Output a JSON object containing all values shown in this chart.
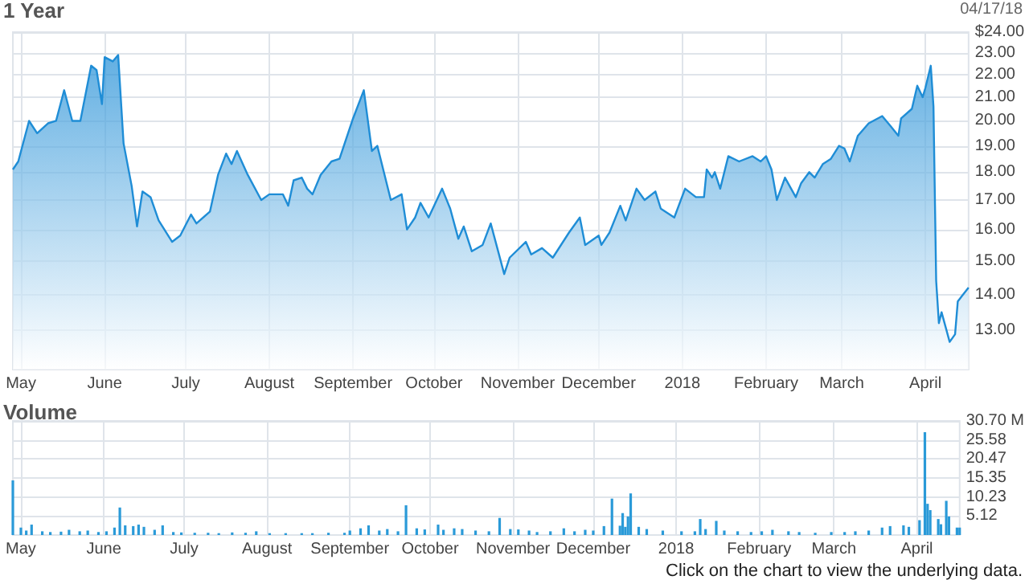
{
  "chart_data": [
    {
      "type": "area",
      "title": "1 Year",
      "annotations": [
        "04/17/18"
      ],
      "color": "#1f8dd6",
      "log": true,
      "grid": true,
      "xlim": [
        "2017-04-28",
        "2018-04-17"
      ],
      "xticks": [
        {
          "value": "2017-05-01",
          "label": "May"
        },
        {
          "value": "2017-06-01",
          "label": "June"
        },
        {
          "value": "2017-07-01",
          "label": "July"
        },
        {
          "value": "2017-08-01",
          "label": "August"
        },
        {
          "value": "2017-09-01",
          "label": "September"
        },
        {
          "value": "2017-10-01",
          "label": "October"
        },
        {
          "value": "2017-11-01",
          "label": "November"
        },
        {
          "value": "2017-12-01",
          "label": "December"
        },
        {
          "value": "2018-01-01",
          "label": "2018"
        },
        {
          "value": "2018-02-01",
          "label": "February"
        },
        {
          "value": "2018-03-01",
          "label": "March"
        },
        {
          "value": "2018-04-01",
          "label": "April"
        }
      ],
      "ylim": [
        12,
        24
      ],
      "yticks": [
        {
          "value": 13,
          "label": "13.00"
        },
        {
          "value": 14,
          "label": "14.00"
        },
        {
          "value": 15,
          "label": "15.00"
        },
        {
          "value": 16,
          "label": "16.00"
        },
        {
          "value": 17,
          "label": "17.00"
        },
        {
          "value": 18,
          "label": "18.00"
        },
        {
          "value": 19,
          "label": "19.00"
        },
        {
          "value": 20,
          "label": "20.00"
        },
        {
          "value": 21,
          "label": "21.00"
        },
        {
          "value": 22,
          "label": "22.00"
        },
        {
          "value": 23,
          "label": "23.00"
        },
        {
          "value": 24,
          "label": "$24.00"
        }
      ],
      "x": [
        "2017-04-28",
        "2017-04-30",
        "2017-05-04",
        "2017-05-07",
        "2017-05-11",
        "2017-05-14",
        "2017-05-17",
        "2017-05-20",
        "2017-05-23",
        "2017-05-27",
        "2017-05-29",
        "2017-05-31",
        "2017-06-01",
        "2017-06-04",
        "2017-06-06",
        "2017-06-08",
        "2017-06-11",
        "2017-06-13",
        "2017-06-15",
        "2017-06-18",
        "2017-06-21",
        "2017-06-26",
        "2017-06-29",
        "2017-07-03",
        "2017-07-05",
        "2017-07-10",
        "2017-07-13",
        "2017-07-16",
        "2017-07-18",
        "2017-07-20",
        "2017-07-24",
        "2017-07-29",
        "2017-08-01",
        "2017-08-06",
        "2017-08-08",
        "2017-08-10",
        "2017-08-13",
        "2017-08-15",
        "2017-08-17",
        "2017-08-20",
        "2017-08-24",
        "2017-08-27",
        "2017-09-01",
        "2017-09-05",
        "2017-09-08",
        "2017-09-10",
        "2017-09-15",
        "2017-09-19",
        "2017-09-21",
        "2017-09-24",
        "2017-09-26",
        "2017-09-29",
        "2017-10-04",
        "2017-10-07",
        "2017-10-10",
        "2017-10-12",
        "2017-10-15",
        "2017-10-19",
        "2017-10-22",
        "2017-10-27",
        "2017-10-29",
        "2017-11-04",
        "2017-11-06",
        "2017-11-10",
        "2017-11-14",
        "2017-11-20",
        "2017-11-24",
        "2017-11-26",
        "2017-12-01",
        "2017-12-02",
        "2017-12-05",
        "2017-12-09",
        "2017-12-11",
        "2017-12-15",
        "2017-12-18",
        "2017-12-22",
        "2017-12-24",
        "2017-12-29",
        "2018-01-02",
        "2018-01-06",
        "2018-01-09",
        "2018-01-10",
        "2018-01-12",
        "2018-01-13",
        "2018-01-15",
        "2018-01-18",
        "2018-01-22",
        "2018-01-27",
        "2018-01-30",
        "2018-02-01",
        "2018-02-03",
        "2018-02-05",
        "2018-02-08",
        "2018-02-12",
        "2018-02-14",
        "2018-02-17",
        "2018-02-19",
        "2018-02-22",
        "2018-02-25",
        "2018-02-28",
        "2018-03-02",
        "2018-03-04",
        "2018-03-07",
        "2018-03-11",
        "2018-03-16",
        "2018-03-19",
        "2018-03-22",
        "2018-03-23",
        "2018-03-27",
        "2018-03-29",
        "2018-03-31",
        "2018-04-01",
        "2018-04-03",
        "2018-04-04",
        "2018-04-05",
        "2018-04-06",
        "2018-04-07",
        "2018-04-10",
        "2018-04-12",
        "2018-04-13",
        "2018-04-15",
        "2018-04-17"
      ],
      "values": [
        18.1,
        18.4,
        20.0,
        19.5,
        19.9,
        20.0,
        21.3,
        20.0,
        20.0,
        22.4,
        22.2,
        20.7,
        22.8,
        22.6,
        22.9,
        19.1,
        17.5,
        16.1,
        17.3,
        17.1,
        16.3,
        15.6,
        15.8,
        16.5,
        16.2,
        16.6,
        17.9,
        18.7,
        18.3,
        18.8,
        17.9,
        17.0,
        17.2,
        17.2,
        16.8,
        17.7,
        17.8,
        17.4,
        17.2,
        17.9,
        18.4,
        18.5,
        20.1,
        21.3,
        18.8,
        19.0,
        17.0,
        17.2,
        16.0,
        16.4,
        16.9,
        16.4,
        17.4,
        16.7,
        15.7,
        16.1,
        15.3,
        15.5,
        16.2,
        14.6,
        15.1,
        15.6,
        15.2,
        15.4,
        15.1,
        15.9,
        16.4,
        15.5,
        15.8,
        15.5,
        15.9,
        16.8,
        16.3,
        17.4,
        17.0,
        17.3,
        16.7,
        16.4,
        17.4,
        17.1,
        17.1,
        18.1,
        17.8,
        18.0,
        17.4,
        18.6,
        18.4,
        18.6,
        18.4,
        18.6,
        18.1,
        17.0,
        17.8,
        17.1,
        17.6,
        18.0,
        17.8,
        18.3,
        18.5,
        19.0,
        18.9,
        18.4,
        19.4,
        19.9,
        20.2,
        19.8,
        19.4,
        20.1,
        20.5,
        21.5,
        21.0,
        21.4,
        22.4,
        20.6,
        14.4,
        13.2,
        13.5,
        12.7,
        12.9,
        13.8,
        14.0,
        14.2
      ]
    },
    {
      "type": "bar",
      "title": "Volume",
      "annotations": [
        "Click on the chart to view the underlying data."
      ],
      "color": "#2a9ad8",
      "grid": true,
      "xlim": [
        "2017-04-28",
        "2018-04-17"
      ],
      "xticks": [
        {
          "value": "2017-05-01",
          "label": "May"
        },
        {
          "value": "2017-06-01",
          "label": "June"
        },
        {
          "value": "2017-07-01",
          "label": "July"
        },
        {
          "value": "2017-08-01",
          "label": "August"
        },
        {
          "value": "2017-09-01",
          "label": "September"
        },
        {
          "value": "2017-10-01",
          "label": "October"
        },
        {
          "value": "2017-11-01",
          "label": "November"
        },
        {
          "value": "2017-12-01",
          "label": "December"
        },
        {
          "value": "2018-01-01",
          "label": "2018"
        },
        {
          "value": "2018-02-01",
          "label": "February"
        },
        {
          "value": "2018-03-01",
          "label": "March"
        },
        {
          "value": "2018-04-01",
          "label": "April"
        }
      ],
      "ylim": [
        0,
        30.7
      ],
      "yticks": [
        5.12,
        10.23,
        15.35,
        20.47,
        25.58,
        {
          "value": 30.7,
          "label": "30.70 M"
        }
      ],
      "x": [
        "2017-04-28",
        "2017-05-01",
        "2017-05-03",
        "2017-05-05",
        "2017-05-09",
        "2017-05-12",
        "2017-05-16",
        "2017-05-19",
        "2017-05-23",
        "2017-05-26",
        "2017-05-30",
        "2017-06-02",
        "2017-06-05",
        "2017-06-07",
        "2017-06-09",
        "2017-06-12",
        "2017-06-14",
        "2017-06-16",
        "2017-06-20",
        "2017-06-23",
        "2017-06-27",
        "2017-06-30",
        "2017-07-05",
        "2017-07-10",
        "2017-07-14",
        "2017-07-19",
        "2017-07-24",
        "2017-07-28",
        "2017-08-02",
        "2017-08-08",
        "2017-08-14",
        "2017-08-18",
        "2017-08-24",
        "2017-08-30",
        "2017-09-01",
        "2017-09-05",
        "2017-09-08",
        "2017-09-12",
        "2017-09-15",
        "2017-09-19",
        "2017-09-22",
        "2017-09-26",
        "2017-09-29",
        "2017-10-04",
        "2017-10-06",
        "2017-10-10",
        "2017-10-13",
        "2017-10-18",
        "2017-10-23",
        "2017-10-27",
        "2017-10-31",
        "2017-11-03",
        "2017-11-07",
        "2017-11-10",
        "2017-11-15",
        "2017-11-20",
        "2017-11-24",
        "2017-11-28",
        "2017-12-01",
        "2017-12-05",
        "2017-12-08",
        "2017-12-11",
        "2017-12-12",
        "2017-12-13",
        "2017-12-14",
        "2017-12-15",
        "2017-12-18",
        "2017-12-21",
        "2017-12-27",
        "2018-01-03",
        "2018-01-08",
        "2018-01-10",
        "2018-01-12",
        "2018-01-16",
        "2018-01-19",
        "2018-01-24",
        "2018-01-29",
        "2018-02-02",
        "2018-02-06",
        "2018-02-12",
        "2018-02-16",
        "2018-02-22",
        "2018-02-28",
        "2018-03-05",
        "2018-03-09",
        "2018-03-14",
        "2018-03-19",
        "2018-03-22",
        "2018-03-27",
        "2018-03-29",
        "2018-04-02",
        "2018-04-04",
        "2018-04-05",
        "2018-04-06",
        "2018-04-09",
        "2018-04-10",
        "2018-04-12",
        "2018-04-13",
        "2018-04-16",
        "2018-04-17"
      ],
      "values": [
        14.7,
        2.0,
        1.2,
        2.8,
        1.0,
        0.8,
        0.9,
        1.4,
        1.0,
        1.2,
        0.8,
        1.0,
        2.0,
        7.4,
        2.6,
        2.4,
        2.8,
        2.2,
        1.4,
        2.6,
        0.8,
        0.7,
        0.6,
        0.6,
        0.5,
        0.7,
        0.6,
        1.0,
        0.5,
        0.5,
        0.5,
        0.5,
        0.6,
        0.6,
        1.2,
        1.8,
        2.6,
        1.2,
        1.6,
        1.0,
        8.0,
        1.8,
        1.5,
        2.8,
        1.4,
        1.8,
        1.6,
        1.2,
        1.0,
        4.6,
        1.6,
        1.5,
        1.2,
        0.8,
        1.0,
        1.8,
        1.0,
        1.4,
        1.2,
        2.4,
        9.8,
        2.5,
        5.9,
        2.2,
        5.0,
        11.2,
        2.2,
        1.6,
        1.2,
        1.0,
        1.0,
        4.3,
        1.6,
        3.8,
        1.2,
        1.0,
        0.8,
        1.0,
        1.4,
        1.0,
        0.8,
        0.6,
        0.8,
        0.8,
        1.0,
        1.2,
        2.0,
        2.4,
        2.6,
        2.2,
        4.0,
        27.7,
        8.4,
        6.7,
        4.3,
        2.9,
        9.2,
        5.0,
        2.0,
        2.0
      ]
    }
  ]
}
